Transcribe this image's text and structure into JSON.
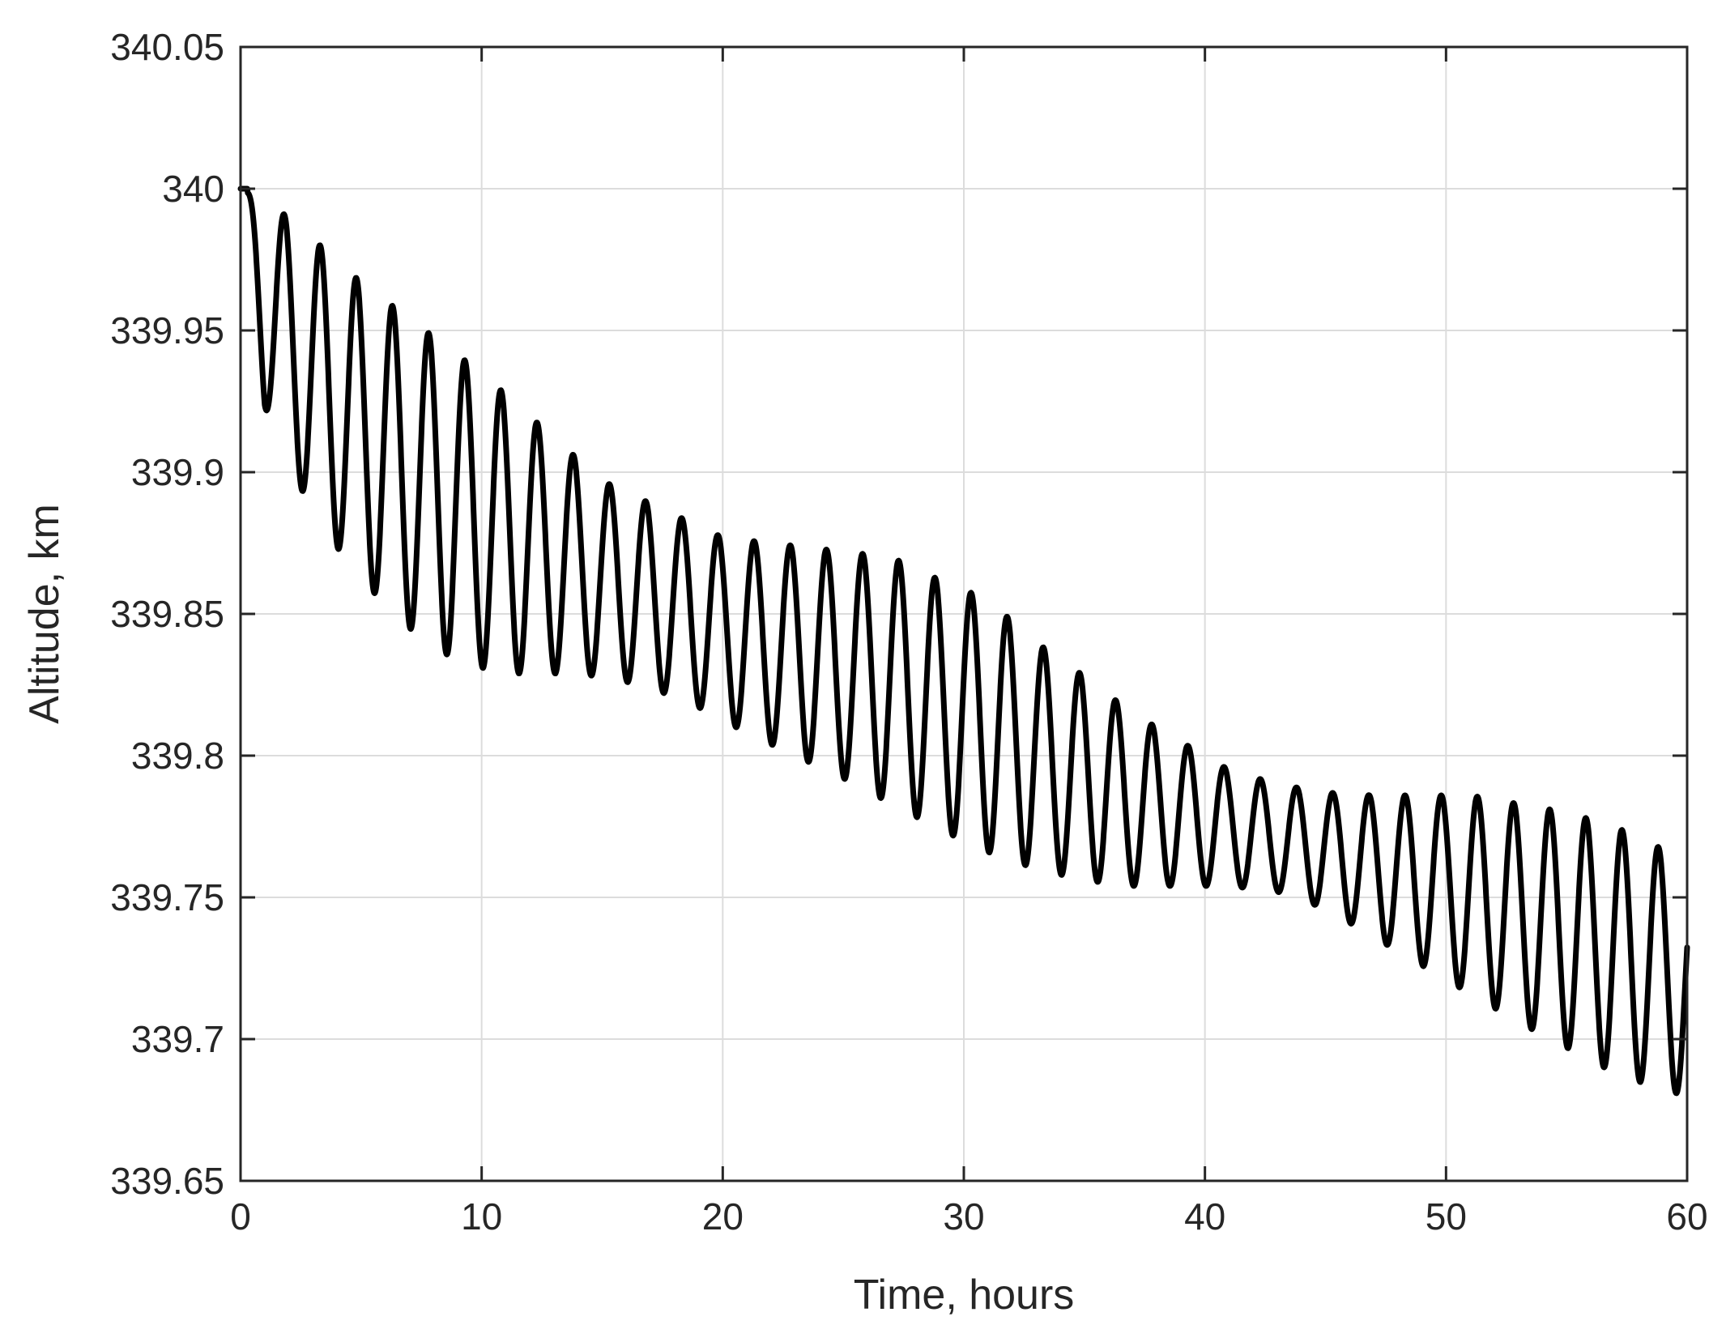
{
  "chart_data": {
    "type": "line",
    "title": "",
    "xlabel": "Time, hours",
    "ylabel": "Altitude, km",
    "xlim": [
      0,
      60
    ],
    "ylim": [
      339.65,
      340.05
    ],
    "xticks": [
      0,
      10,
      20,
      30,
      40,
      50,
      60
    ],
    "xtick_labels": [
      "0",
      "10",
      "20",
      "30",
      "40",
      "50",
      "60"
    ],
    "yticks": [
      339.65,
      339.7,
      339.75,
      339.8,
      339.85,
      339.9,
      339.95,
      340.0,
      340.05
    ],
    "ytick_labels": [
      "339.65",
      "339.7",
      "339.75",
      "339.8",
      "339.85",
      "339.9",
      "339.95",
      "340",
      "340.05"
    ],
    "grid": true,
    "legend": "none",
    "line_color": "#000000",
    "series": [
      {
        "name": "",
        "oscillation_period_hours": 1.5,
        "envelope_max": {
          "x": [
            0,
            2,
            5,
            10,
            15,
            20,
            25,
            27,
            29,
            31,
            33,
            35,
            37,
            39,
            41,
            43,
            45,
            47,
            49,
            51,
            53,
            55,
            57,
            59,
            60
          ],
          "y": [
            340.0,
            339.99,
            339.967,
            339.935,
            339.897,
            339.877,
            339.872,
            339.87,
            339.862,
            339.855,
            339.84,
            339.828,
            339.815,
            339.805,
            339.795,
            339.79,
            339.787,
            339.786,
            339.786,
            339.786,
            339.783,
            339.78,
            339.775,
            339.767,
            339.76
          ]
        },
        "envelope_min": {
          "x": [
            0,
            1,
            3,
            5,
            7,
            9,
            11,
            13,
            15,
            17,
            19,
            21,
            23,
            25,
            27,
            29,
            31,
            33,
            35,
            37,
            39,
            41,
            43,
            45,
            47,
            49,
            51,
            53,
            55,
            57,
            59,
            60
          ],
          "y": [
            340.0,
            339.923,
            339.885,
            339.862,
            339.845,
            339.833,
            339.829,
            339.829,
            339.828,
            339.824,
            339.817,
            339.808,
            339.8,
            339.792,
            339.783,
            339.774,
            339.766,
            339.76,
            339.756,
            339.754,
            339.754,
            339.754,
            339.752,
            339.746,
            339.736,
            339.726,
            339.716,
            339.706,
            339.697,
            339.688,
            339.682,
            339.68
          ]
        }
      }
    ]
  }
}
